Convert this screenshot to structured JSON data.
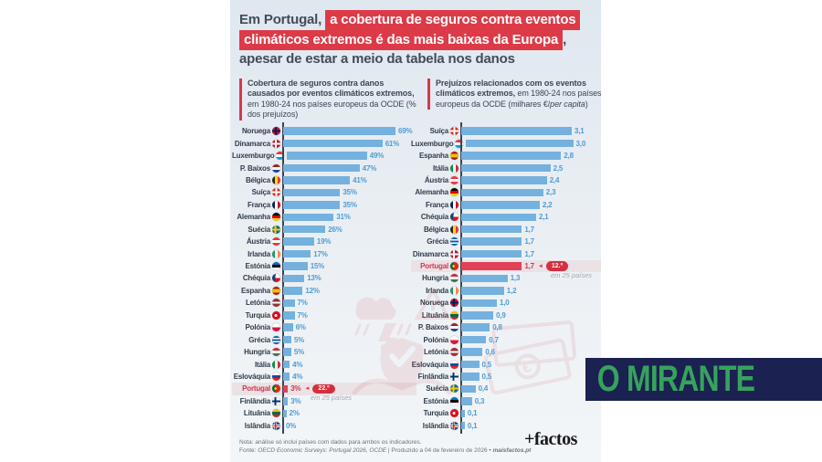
{
  "title": {
    "t1_dark": "Em Portugal,",
    "t1_red": "a cobertura de seguros contra eventos",
    "t2_red": "climáticos extremos é das mais baixas da Europa",
    "t2_dark": ",",
    "t3": "apesar de estar a meio da tabela nos danos"
  },
  "icons": {
    "rank_arrow": "◄",
    "watermark_left": "storm-shield-check-hands-icon",
    "watermark_right": "banknotes-euro-icon"
  },
  "colors": {
    "accent_red": "#dd3a48",
    "portugal_red": "#d6374a",
    "bar_blue": "#74b1de",
    "value_blue": "#4f9cd4",
    "logo_navy": "#1b2150",
    "logo_green": "#36a35c"
  },
  "chart_data": [
    {
      "type": "bar",
      "orientation": "horizontal",
      "heading_bold": "Cobertura de seguros contra danos causados por eventos climáticos extremos,",
      "heading_normal": " em 1980-24 nos países europeus da OCDE (% dos prejuízos)",
      "heading_italic": "",
      "heading_tail": "",
      "unit": "%",
      "axis_max": 69,
      "xlim": [
        0,
        69
      ],
      "rank_note": "em 25 países",
      "rows": [
        {
          "label": "Noruega",
          "flag": "no",
          "value": 69,
          "display": "69%"
        },
        {
          "label": "Dinamarca",
          "flag": "dk",
          "value": 61,
          "display": "61%"
        },
        {
          "label": "Luxemburgo",
          "flag": "lu",
          "value": 49,
          "display": "49%"
        },
        {
          "label": "P. Baixos",
          "flag": "nl",
          "value": 47,
          "display": "47%"
        },
        {
          "label": "Bélgica",
          "flag": "be",
          "value": 41,
          "display": "41%"
        },
        {
          "label": "Suíça",
          "flag": "ch",
          "value": 35,
          "display": "35%"
        },
        {
          "label": "França",
          "flag": "fr",
          "value": 35,
          "display": "35%"
        },
        {
          "label": "Alemanha",
          "flag": "de",
          "value": 31,
          "display": "31%"
        },
        {
          "label": "Suécia",
          "flag": "se",
          "value": 26,
          "display": "26%"
        },
        {
          "label": "Áustria",
          "flag": "at",
          "value": 19,
          "display": "19%"
        },
        {
          "label": "Irlanda",
          "flag": "ie",
          "value": 17,
          "display": "17%"
        },
        {
          "label": "Estónia",
          "flag": "ee",
          "value": 15,
          "display": "15%"
        },
        {
          "label": "Chéquia",
          "flag": "cz",
          "value": 13,
          "display": "13%"
        },
        {
          "label": "Espanha",
          "flag": "es",
          "value": 12,
          "display": "12%"
        },
        {
          "label": "Letónia",
          "flag": "lv",
          "value": 7,
          "display": "7%"
        },
        {
          "label": "Turquia",
          "flag": "tr",
          "value": 7,
          "display": "7%"
        },
        {
          "label": "Polónia",
          "flag": "pl",
          "value": 6,
          "display": "6%"
        },
        {
          "label": "Grécia",
          "flag": "gr",
          "value": 5,
          "display": "5%"
        },
        {
          "label": "Hungria",
          "flag": "hu",
          "value": 5,
          "display": "5%"
        },
        {
          "label": "Itália",
          "flag": "it",
          "value": 4,
          "display": "4%"
        },
        {
          "label": "Eslováquia",
          "flag": "sk",
          "value": 4,
          "display": "4%"
        },
        {
          "label": "Portugal",
          "flag": "pt",
          "value": 3,
          "display": "3%",
          "rank": "22.º"
        },
        {
          "label": "Finlândia",
          "flag": "fi",
          "value": 3,
          "display": "3%"
        },
        {
          "label": "Lituânia",
          "flag": "lt",
          "value": 2,
          "display": "2%"
        },
        {
          "label": "Islândia",
          "flag": "is",
          "value": 0,
          "display": "0%"
        }
      ]
    },
    {
      "type": "bar",
      "orientation": "horizontal",
      "heading_bold": "Prejuízos relacionados com os eventos climáticos extremos,",
      "heading_normal": " em 1980-24 nos países europeus da OCDE (milhares €/",
      "heading_italic": "per capita",
      "heading_tail": ")",
      "unit": "milhares €/per capita",
      "axis_max": 3.1,
      "xlim": [
        0,
        3.1
      ],
      "rank_note": "em 25 países",
      "rows": [
        {
          "label": "Suíça",
          "flag": "ch",
          "value": 3.1,
          "display": "3,1"
        },
        {
          "label": "Luxemburgo",
          "flag": "lu",
          "value": 3.0,
          "display": "3,0"
        },
        {
          "label": "Espanha",
          "flag": "es",
          "value": 2.8,
          "display": "2,8"
        },
        {
          "label": "Itália",
          "flag": "it",
          "value": 2.5,
          "display": "2,5"
        },
        {
          "label": "Áustria",
          "flag": "at",
          "value": 2.4,
          "display": "2,4"
        },
        {
          "label": "Alemanha",
          "flag": "de",
          "value": 2.3,
          "display": "2,3"
        },
        {
          "label": "França",
          "flag": "fr",
          "value": 2.2,
          "display": "2,2"
        },
        {
          "label": "Chéquia",
          "flag": "cz",
          "value": 2.1,
          "display": "2,1"
        },
        {
          "label": "Bélgica",
          "flag": "be",
          "value": 1.7,
          "display": "1,7"
        },
        {
          "label": "Grécia",
          "flag": "gr",
          "value": 1.7,
          "display": "1,7"
        },
        {
          "label": "Dinamarca",
          "flag": "dk",
          "value": 1.7,
          "display": "1,7"
        },
        {
          "label": "Portugal",
          "flag": "pt",
          "value": 1.7,
          "display": "1,7",
          "rank": "12.º"
        },
        {
          "label": "Hungria",
          "flag": "hu",
          "value": 1.3,
          "display": "1,3"
        },
        {
          "label": "Irlanda",
          "flag": "ie",
          "value": 1.2,
          "display": "1,2"
        },
        {
          "label": "Noruega",
          "flag": "no",
          "value": 1.0,
          "display": "1,0"
        },
        {
          "label": "Lituânia",
          "flag": "lt",
          "value": 0.9,
          "display": "0,9"
        },
        {
          "label": "P. Baixos",
          "flag": "nl",
          "value": 0.8,
          "display": "0,8"
        },
        {
          "label": "Polónia",
          "flag": "pl",
          "value": 0.7,
          "display": "0,7"
        },
        {
          "label": "Letónia",
          "flag": "lv",
          "value": 0.6,
          "display": "0,6"
        },
        {
          "label": "Eslováquia",
          "flag": "sk",
          "value": 0.5,
          "display": "0,5"
        },
        {
          "label": "Finlândia",
          "flag": "fi",
          "value": 0.5,
          "display": "0,5"
        },
        {
          "label": "Suécia",
          "flag": "se",
          "value": 0.4,
          "display": "0,4"
        },
        {
          "label": "Estónia",
          "flag": "ee",
          "value": 0.3,
          "display": "0,3"
        },
        {
          "label": "Turquia",
          "flag": "tr",
          "value": 0.1,
          "display": "0,1"
        },
        {
          "label": "Islândia",
          "flag": "is",
          "value": 0.1,
          "display": "0,1"
        }
      ]
    }
  ],
  "footer": {
    "note": "Nota: análise só inclui países com dados para ambos os indicadores.",
    "source_prefix": "Fonte: ",
    "source_italic": "OECD Economic Surveys: Portugal 2026, OCDE",
    "source_mid": "  |  Produzido a 04 de fevereiro de 2026 • ",
    "source_brand": "maisfactos.pt",
    "brand": "+factos"
  },
  "overlay_logo": {
    "text": "O MIRANTE"
  }
}
